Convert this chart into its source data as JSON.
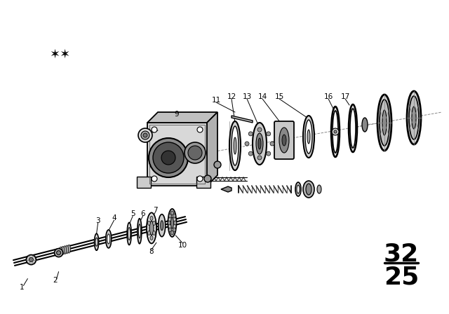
{
  "bg_color": "#ffffff",
  "text_color": "#000000",
  "part_number_top": "32",
  "part_number_bottom": "25",
  "stars": "**",
  "lw_main": 1.2,
  "lw_thin": 0.7,
  "lw_thick": 2.0
}
